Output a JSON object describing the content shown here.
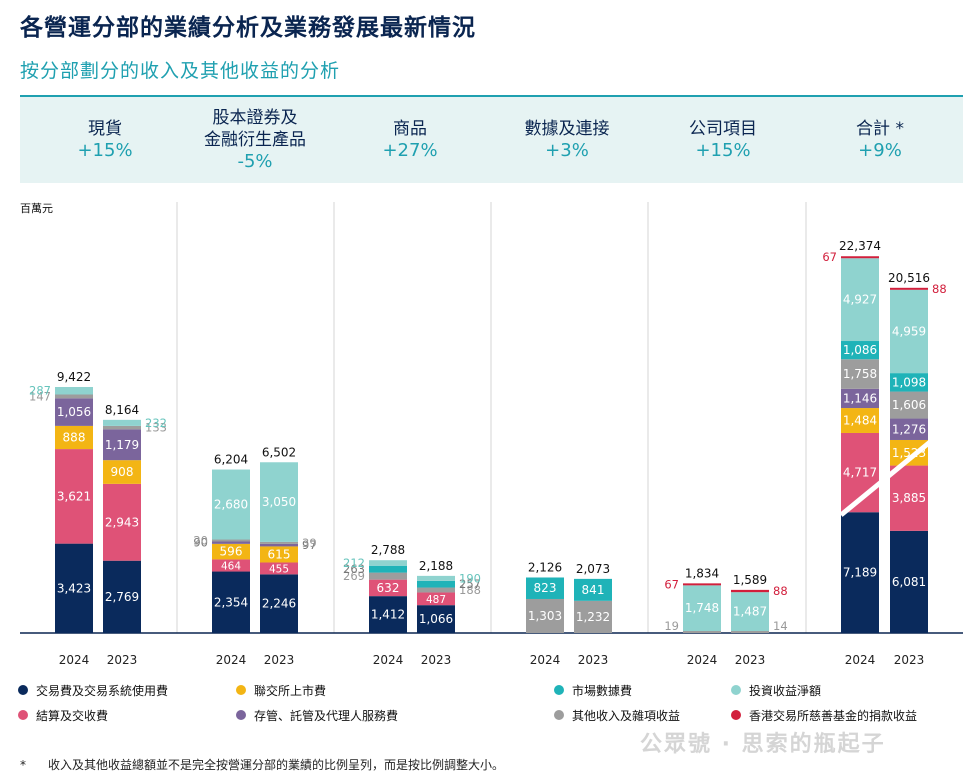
{
  "title": "各營運分部的業績分析及業務發展最新情況",
  "subtitle": "按分部劃分的收入及其他收益的分析",
  "segments_header": [
    {
      "name": "現貨",
      "growth": "+15%"
    },
    {
      "name": "股本證券及\n金融衍生產品",
      "growth": "-5%"
    },
    {
      "name": "商品",
      "growth": "+27%"
    },
    {
      "name": "數據及連接",
      "growth": "+3%"
    },
    {
      "name": "公司項目",
      "growth": "+15%"
    },
    {
      "name": "合計 *",
      "growth": "+9%"
    }
  ],
  "legend": [
    {
      "key": "trading",
      "label": "交易費及交易系統使用費",
      "color": "#0a2a5c"
    },
    {
      "key": "listing",
      "label": "聯交所上市費",
      "color": "#f3b514"
    },
    {
      "key": "market_data",
      "label": "市場數據費",
      "color": "#1fb3b8"
    },
    {
      "key": "investment",
      "label": "投資收益淨額",
      "color": "#8fd3cf"
    },
    {
      "key": "clearing",
      "label": "結算及交收費",
      "color": "#df5277"
    },
    {
      "key": "custody",
      "label": "存管、託管及代理人服務費",
      "color": "#7b659c"
    },
    {
      "key": "other",
      "label": "其他收入及雜項收益",
      "color": "#9d9d9d"
    },
    {
      "key": "donation",
      "label": "香港交易所慈善基金的捐款收益",
      "color": "#d21f3c"
    }
  ],
  "footnote_mark": "*",
  "footnote": "收入及其他收益總額並不是完全按營運分部的業績的比例呈列，而是按比例調整大小。",
  "watermark": "公眾號 · 思索的瓶起子",
  "chart_data": {
    "type": "bar",
    "stacked": true,
    "unit_label": "百萬元",
    "order": [
      "trading",
      "clearing",
      "listing",
      "custody",
      "other",
      "market_data",
      "investment",
      "donation"
    ],
    "groups": [
      {
        "segment": "現貨",
        "bars": [
          {
            "year": "2024",
            "total": "9,422",
            "values": {
              "trading": 3423,
              "clearing": 3621,
              "listing": 888,
              "custody": 1056,
              "other": 147,
              "investment": 287
            }
          },
          {
            "year": "2023",
            "total": "8,164",
            "values": {
              "trading": 2769,
              "clearing": 2943,
              "listing": 908,
              "custody": 1179,
              "other": 133,
              "investment": 232
            }
          }
        ]
      },
      {
        "segment": "股本證券及金融衍生產品",
        "bars": [
          {
            "year": "2024",
            "total": "6,204",
            "values": {
              "trading": 2354,
              "clearing": 464,
              "listing": 596,
              "other": 20,
              "custody": 90,
              "investment": 2680
            }
          },
          {
            "year": "2023",
            "total": "6,502",
            "values": {
              "trading": 2246,
              "clearing": 455,
              "listing": 615,
              "custody": 97,
              "other": 39,
              "investment": 3050
            }
          }
        ]
      },
      {
        "segment": "商品",
        "bars": [
          {
            "year": "2024",
            "total": "2,788",
            "values": {
              "trading": 1412,
              "clearing": 632,
              "market_data": 263,
              "other": 269,
              "investment": 212
            }
          },
          {
            "year": "2023",
            "total": "2,188",
            "values": {
              "trading": 1066,
              "clearing": 487,
              "market_data": 257,
              "other": 188,
              "investment": 190
            }
          }
        ]
      },
      {
        "segment": "數據及連接",
        "bars": [
          {
            "year": "2024",
            "total": "2,126",
            "values": {
              "market_data": 823,
              "other": 1303
            }
          },
          {
            "year": "2023",
            "total": "2,073",
            "values": {
              "market_data": 841,
              "other": 1232
            }
          }
        ]
      },
      {
        "segment": "公司項目",
        "bars": [
          {
            "year": "2024",
            "total": "1,834",
            "values": {
              "other": 19,
              "investment": 1748,
              "donation": 67
            }
          },
          {
            "year": "2023",
            "total": "1,589",
            "values": {
              "other": 14,
              "investment": 1487,
              "donation": 88
            }
          }
        ]
      },
      {
        "segment": "合計",
        "bars": [
          {
            "year": "2024",
            "total": "22,374",
            "values": {
              "trading": 7189,
              "clearing": 4717,
              "listing": 1484,
              "custody": 1146,
              "market_data": 1086,
              "other": 1758,
              "investment": 4927,
              "donation": 67
            }
          },
          {
            "year": "2023",
            "total": "20,516",
            "values": {
              "trading": 6081,
              "clearing": 3885,
              "listing": 1523,
              "custody": 1276,
              "market_data": 1098,
              "other": 1606,
              "investment": 4959,
              "donation": 88
            }
          }
        ]
      }
    ]
  }
}
